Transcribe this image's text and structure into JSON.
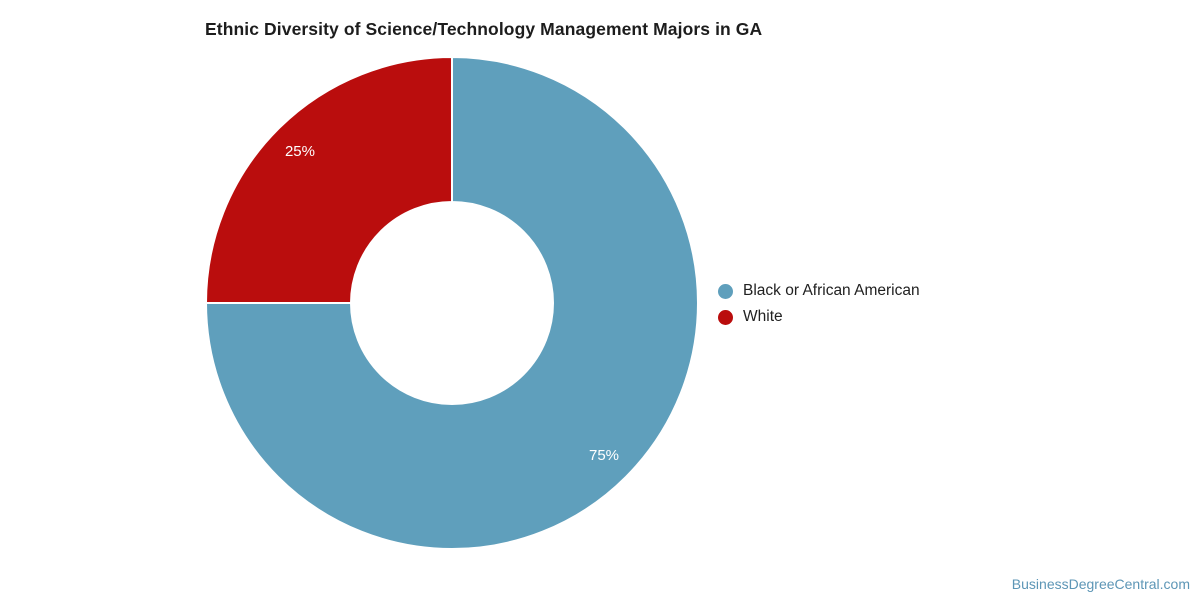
{
  "title": "Ethnic Diversity of Science/Technology Management Majors in GA",
  "watermark": "BusinessDegreeCentral.com",
  "colors": {
    "background": "#ffffff",
    "title_text": "#1d1d1d",
    "slice_stroke": "#ffffff",
    "slice_label_text": "#ffffff",
    "legend_text": "#212121",
    "watermark_text": "#5d96b6"
  },
  "chart_data": {
    "type": "pie",
    "subtype": "donut",
    "title": "Ethnic Diversity of Science/Technology Management Majors in GA",
    "categories": [
      "Black or African American",
      "White"
    ],
    "values": [
      75,
      25
    ],
    "slice_labels": [
      "75%",
      "25%"
    ],
    "slice_colors": [
      "#5f9fbc",
      "#ba0d0d"
    ],
    "start_angle_deg": 0,
    "direction": "clockwise",
    "inner_radius_ratio": 0.41,
    "legend_position": "right",
    "grid": false
  },
  "legend": {
    "items": [
      {
        "label": "Black or African American",
        "color": "#5f9fbc"
      },
      {
        "label": "White",
        "color": "#ba0d0d"
      }
    ]
  }
}
